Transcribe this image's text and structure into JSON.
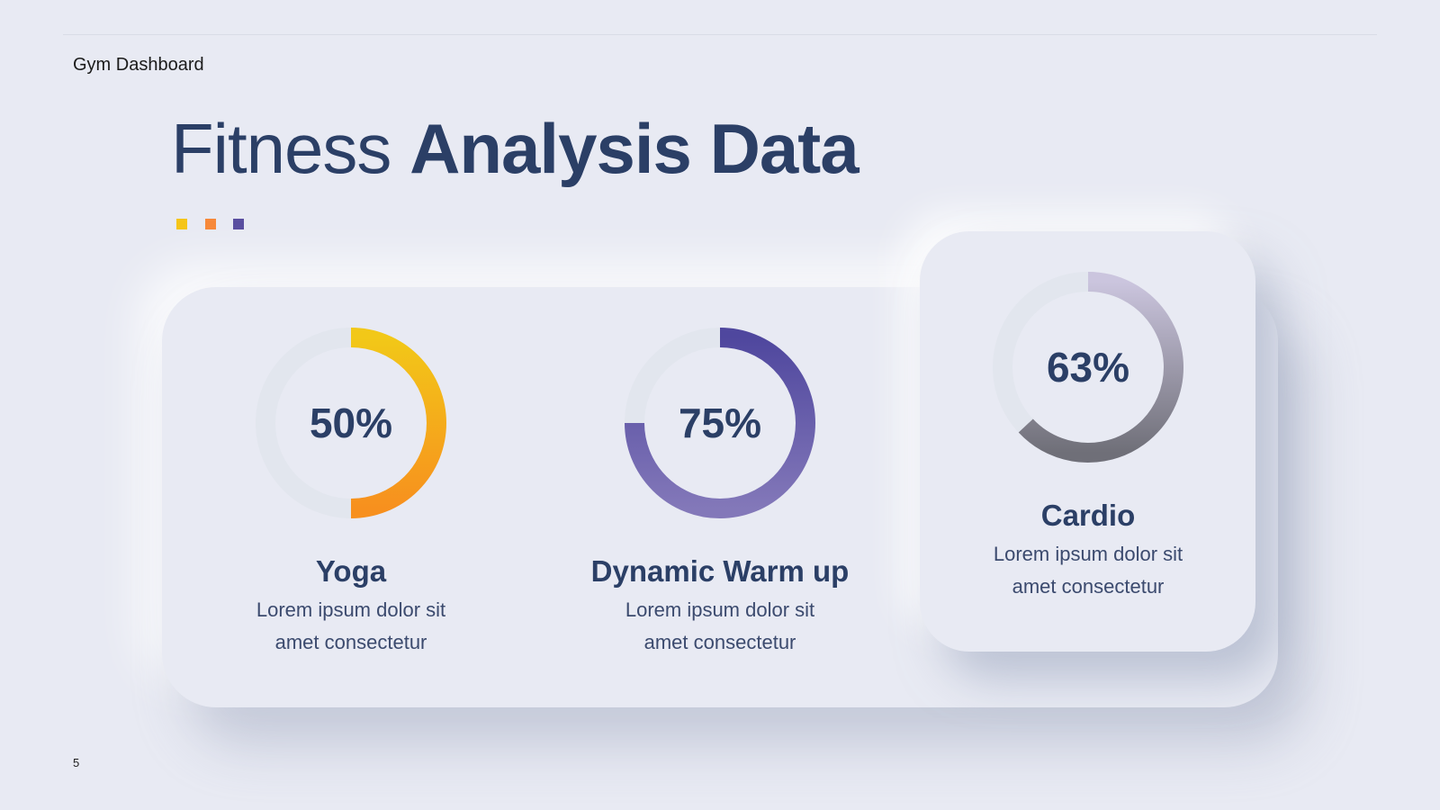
{
  "header": {
    "label": "Gym Dashboard"
  },
  "title": {
    "regular": "Fitness",
    "bold": "Analysis Data"
  },
  "accent_colors": [
    "#f5c518",
    "#f7893a",
    "#5a4fa0"
  ],
  "cards": [
    {
      "name": "Yoga",
      "value": 50,
      "value_label": "50%",
      "description": "Lorem ipsum dolor sit amet consectetur",
      "colors": [
        "#f2c818",
        "#f7901e"
      ]
    },
    {
      "name": "Dynamic Warm up",
      "value": 75,
      "value_label": "75%",
      "description": "Lorem ipsum dolor sit amet consectetur",
      "colors": [
        "#4f479e",
        "#8378b9"
      ]
    },
    {
      "name": "Cardio",
      "value": 63,
      "value_label": "63%",
      "description": "Lorem ipsum dolor sit amet consectetur",
      "colors": [
        "#cbc5de",
        "#6f6f78"
      ]
    }
  ],
  "page_number": 5
}
